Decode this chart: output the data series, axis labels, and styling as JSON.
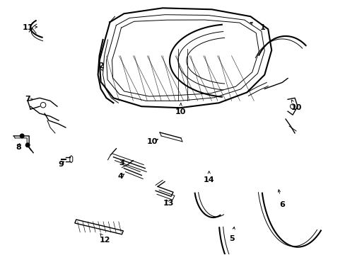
{
  "background_color": "#ffffff",
  "line_color": "#000000",
  "label_color": "#000000",
  "fig_width": 4.89,
  "fig_height": 3.6,
  "dpi": 100,
  "font_size": 8
}
